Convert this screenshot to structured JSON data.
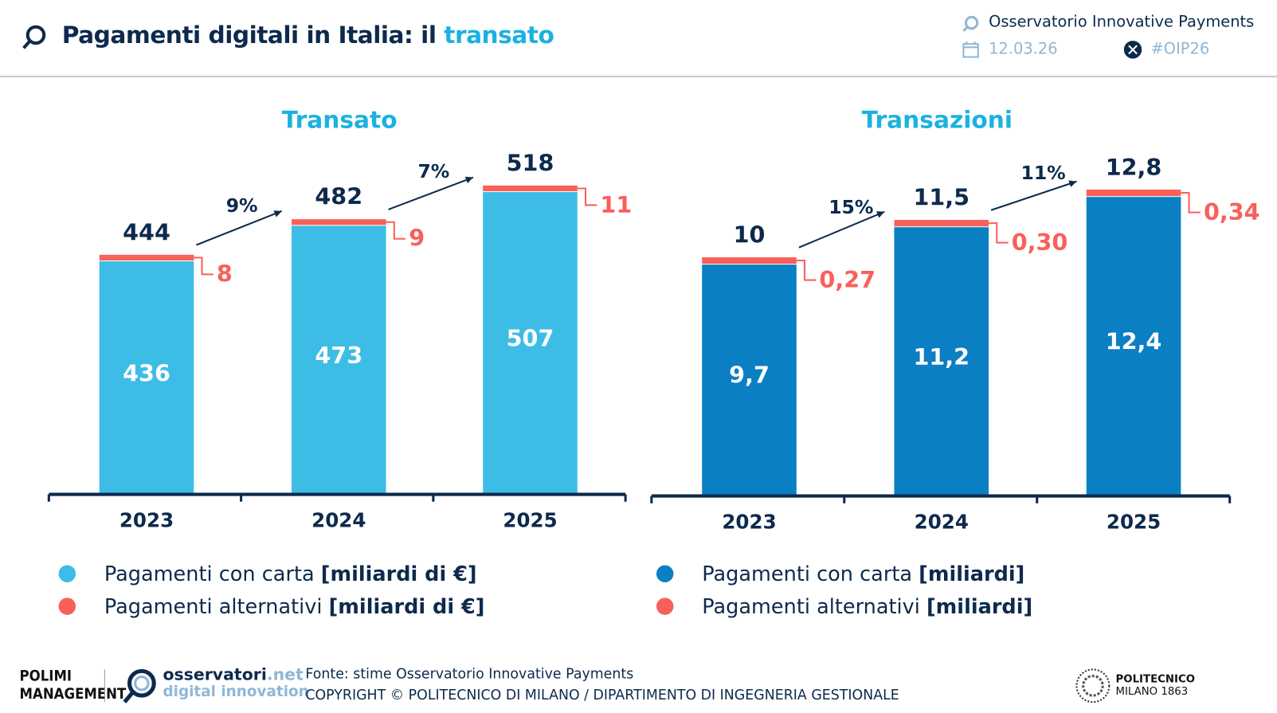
{
  "header": {
    "title_main": "Pagamenti digitali in Italia: il ",
    "title_accent": "transato",
    "org": "Osservatorio Innovative Payments",
    "date": "12.03.26",
    "hashtag": "#OIP26"
  },
  "colors": {
    "navy": "#0d2a4d",
    "light_blue": "#3dbde6",
    "dark_blue": "#0a7fc4",
    "coral": "#f9605a",
    "accent": "#1ab2e0"
  },
  "chart_data": [
    {
      "type": "bar",
      "title": "Transato",
      "categories": [
        "2023",
        "2024",
        "2025"
      ],
      "series": [
        {
          "name": "Pagamenti con carta",
          "values_label": [
            "436",
            "473",
            "507"
          ],
          "values": [
            436,
            473,
            507
          ],
          "color": "#3dbde6"
        },
        {
          "name": "Pagamenti alternativi",
          "values_label": [
            "8",
            "9",
            "11"
          ],
          "values": [
            8,
            9,
            11
          ],
          "color": "#f9605a"
        }
      ],
      "totals_label": [
        "444",
        "482",
        "518"
      ],
      "growth": [
        "9%",
        "7%"
      ],
      "legend": [
        {
          "text": "Pagamenti con carta ",
          "unit": "[miliardi di €]"
        },
        {
          "text": "Pagamenti alternativi ",
          "unit": "[miliardi di €]"
        }
      ]
    },
    {
      "type": "bar",
      "title": "Transazioni",
      "categories": [
        "2023",
        "2024",
        "2025"
      ],
      "series": [
        {
          "name": "Pagamenti con carta",
          "values_label": [
            "9,7",
            "11,2",
            "12,4"
          ],
          "values": [
            9.7,
            11.2,
            12.4
          ],
          "color": "#0a7fc4"
        },
        {
          "name": "Pagamenti alternativi",
          "values_label": [
            "0,27",
            "0,30",
            "0,34"
          ],
          "values": [
            0.27,
            0.3,
            0.34
          ],
          "color": "#f9605a"
        }
      ],
      "totals_label": [
        "10",
        "11,5",
        "12,8"
      ],
      "growth": [
        "15%",
        "11%"
      ],
      "legend": [
        {
          "text": "Pagamenti con carta ",
          "unit": "[miliardi]"
        },
        {
          "text": "Pagamenti alternativi ",
          "unit": "[miliardi]"
        }
      ]
    }
  ],
  "footer": {
    "source": "Fonte: stime Osservatorio Innovative Payments",
    "copyright": "COPYRIGHT © POLITECNICO DI MILANO / DIPARTIMENTO DI INGEGNERIA GESTIONALE",
    "logo_polimi": "POLIMI SCHOOL OF MANAGEMENT",
    "logo_osservatori_1": "osservatori",
    "logo_osservatori_2": ".net",
    "logo_osservatori_3": "digital innovation",
    "logo_politecnico_1": "POLITECNICO",
    "logo_politecnico_2": "MILANO 1863"
  }
}
